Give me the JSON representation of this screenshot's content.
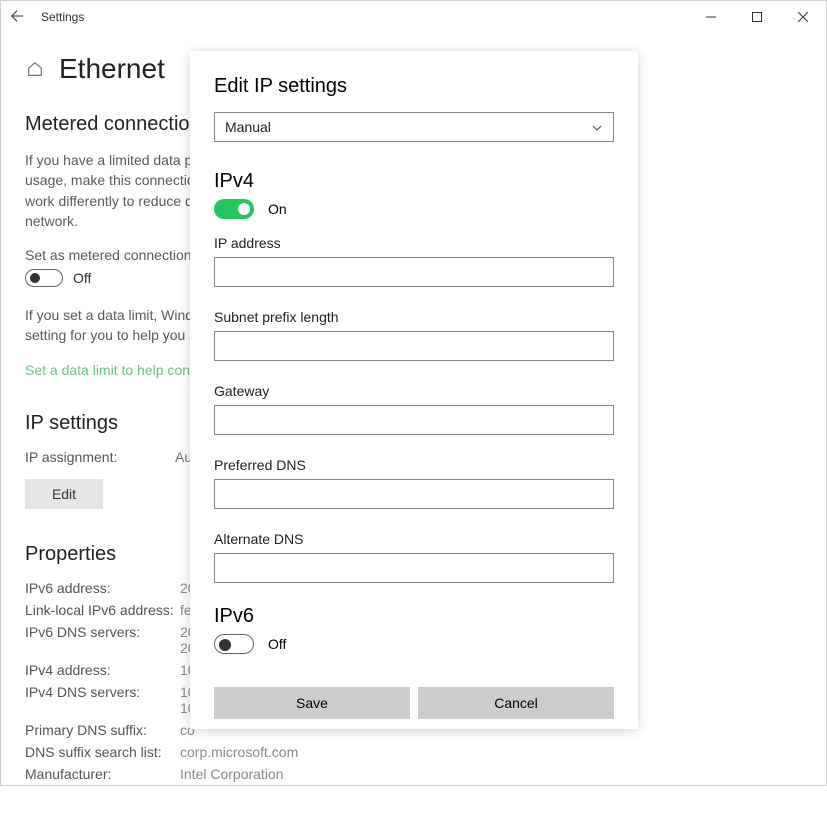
{
  "colors": {
    "accent_green": "#22c55e",
    "link_green": "#6abf8b",
    "button_gray": "#cccccc",
    "border_gray": "#888888",
    "text_muted": "#777777"
  },
  "window": {
    "title": "Settings"
  },
  "page": {
    "title": "Ethernet",
    "metered": {
      "heading": "Metered connection",
      "body": "If you have a limited data plan and want more control over data usage, make this connection a metered network. Some apps might work differently to reduce data usage when you're connected to this network.",
      "toggle_label": "Set as metered connection",
      "toggle_state": "Off",
      "body2": "If you set a data limit, Windows will set the metered connection setting for you to help you stay under your limit.",
      "link": "Set a data limit to help control data usage on this network"
    },
    "ip_settings": {
      "heading": "IP settings",
      "assignment_label": "IP assignment:",
      "assignment_value": "Automatic (DHCP)",
      "edit_label": "Edit"
    },
    "properties": {
      "heading": "Properties",
      "rows": [
        {
          "k": "IPv6 address:",
          "v": "20"
        },
        {
          "k": "Link-local IPv6 address:",
          "v": "fe"
        },
        {
          "k": "IPv6 DNS servers:",
          "v": "20\n20"
        },
        {
          "k": "IPv4 address:",
          "v": "10"
        },
        {
          "k": "IPv4 DNS servers:",
          "v": "10\n10"
        },
        {
          "k": "Primary DNS suffix:",
          "v": "co"
        },
        {
          "k": "DNS suffix search list:",
          "v": "corp.microsoft.com"
        },
        {
          "k": "Manufacturer:",
          "v": "Intel Corporation"
        }
      ]
    }
  },
  "dialog": {
    "title": "Edit IP settings",
    "mode_value": "Manual",
    "ipv4": {
      "heading": "IPv4",
      "toggle_state": "On",
      "fields": {
        "ip_address": {
          "label": "IP address",
          "value": ""
        },
        "subnet": {
          "label": "Subnet prefix length",
          "value": ""
        },
        "gateway": {
          "label": "Gateway",
          "value": ""
        },
        "preferred_dns": {
          "label": "Preferred DNS",
          "value": ""
        },
        "alternate_dns": {
          "label": "Alternate DNS",
          "value": ""
        }
      }
    },
    "ipv6": {
      "heading": "IPv6",
      "toggle_state": "Off"
    },
    "save_label": "Save",
    "cancel_label": "Cancel"
  }
}
